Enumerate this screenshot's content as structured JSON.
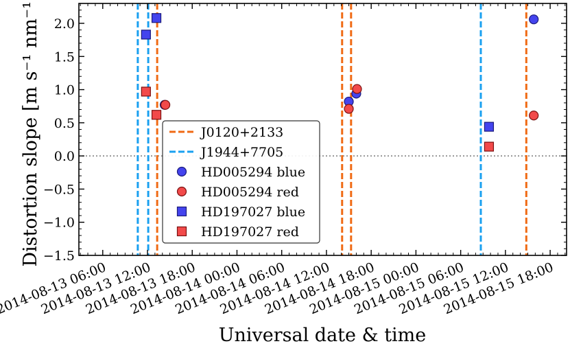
{
  "chart_data": {
    "type": "scatter",
    "title": "",
    "xlabel": "Universal date & time",
    "ylabel": "Distortion slope [m s⁻¹ nm⁻¹]",
    "ylim": [
      -1.5,
      2.3
    ],
    "xlim_hours": [
      -3.2,
      62.2
    ],
    "x_reference": "2014-08-13 06:00",
    "x_ticks": [
      {
        "hours": 0,
        "label": "2014-08-13 06:00"
      },
      {
        "hours": 6,
        "label": "2014-08-13 12:00"
      },
      {
        "hours": 12,
        "label": "2014-08-13 18:00"
      },
      {
        "hours": 18,
        "label": "2014-08-14 00:00"
      },
      {
        "hours": 24,
        "label": "2014-08-14 06:00"
      },
      {
        "hours": 30,
        "label": "2014-08-14 12:00"
      },
      {
        "hours": 36,
        "label": "2014-08-14 18:00"
      },
      {
        "hours": 42,
        "label": "2014-08-15 00:00"
      },
      {
        "hours": 48,
        "label": "2014-08-15 06:00"
      },
      {
        "hours": 54,
        "label": "2014-08-15 12:00"
      },
      {
        "hours": 60,
        "label": "2014-08-15 18:00"
      }
    ],
    "y_ticks": [
      {
        "value": 2.0,
        "label": "2.0"
      },
      {
        "value": 1.5,
        "label": "1.5"
      },
      {
        "value": 1.0,
        "label": "1.0"
      },
      {
        "value": 0.5,
        "label": "0.5"
      },
      {
        "value": 0.0,
        "label": "0.0"
      },
      {
        "value": -0.5,
        "label": "−0.5"
      },
      {
        "value": -1.0,
        "label": "−1.0"
      },
      {
        "value": -1.5,
        "label": "−1.5"
      }
    ],
    "reference_line_y": 0.0,
    "vlines": [
      {
        "name": "J0120+2133",
        "color": "#f06a14",
        "hours": [
          7.3,
          32.1,
          33.3,
          56.8
        ]
      },
      {
        "name": "J1944+7705",
        "color": "#1aa0f0",
        "hours": [
          4.7,
          6.1,
          50.7
        ]
      }
    ],
    "series": [
      {
        "name": "HD005294 blue",
        "marker": "circle",
        "color": "#4444ee",
        "points": [
          {
            "x": 8.3,
            "y": 0.77
          },
          {
            "x": 33.0,
            "y": 0.82
          },
          {
            "x": 34.0,
            "y": 0.94
          },
          {
            "x": 57.8,
            "y": 2.06
          }
        ]
      },
      {
        "name": "HD005294 red",
        "marker": "circle",
        "color": "#f24a4a",
        "points": [
          {
            "x": 8.4,
            "y": 0.77
          },
          {
            "x": 33.0,
            "y": 0.71
          },
          {
            "x": 34.1,
            "y": 1.01
          },
          {
            "x": 57.8,
            "y": 0.61
          }
        ]
      },
      {
        "name": "HD197027 blue",
        "marker": "square",
        "color": "#4444ee",
        "points": [
          {
            "x": 5.8,
            "y": 1.83
          },
          {
            "x": 7.2,
            "y": 2.08
          },
          {
            "x": 51.8,
            "y": 0.44
          }
        ]
      },
      {
        "name": "HD197027 red",
        "marker": "square",
        "color": "#f24a4a",
        "points": [
          {
            "x": 5.8,
            "y": 0.97
          },
          {
            "x": 7.2,
            "y": 0.62
          },
          {
            "x": 51.8,
            "y": 0.14
          }
        ]
      }
    ],
    "legend": {
      "position": "center-left",
      "entries": [
        {
          "label": "J0120+2133",
          "kind": "dashed-line",
          "color": "#f06a14"
        },
        {
          "label": "J1944+7705",
          "kind": "dashed-line",
          "color": "#1aa0f0"
        },
        {
          "label": "HD005294 blue",
          "kind": "circle",
          "color": "#4444ee"
        },
        {
          "label": "HD005294 red",
          "kind": "circle",
          "color": "#f24a4a"
        },
        {
          "label": "HD197027 blue",
          "kind": "square",
          "color": "#4444ee"
        },
        {
          "label": "HD197027 red",
          "kind": "square",
          "color": "#f24a4a"
        }
      ]
    }
  }
}
